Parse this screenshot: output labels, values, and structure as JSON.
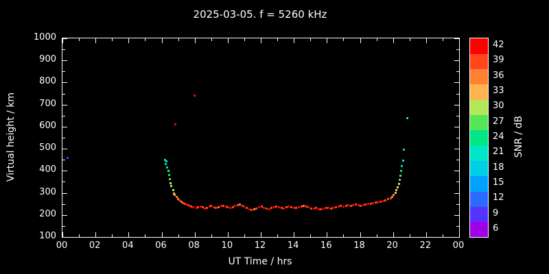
{
  "background": "#000000",
  "frame_color": "#ffffff",
  "text_color": "#ffffff",
  "chart_data": {
    "type": "scatter",
    "title": "2025-03-05. f = 5260 kHz",
    "xlabel": "UT Time / hrs",
    "ylabel": "Virtual height / km",
    "colorbar_label": "SNR / dB",
    "xlim": [
      0,
      24
    ],
    "ylim": [
      100,
      1000
    ],
    "grid": false,
    "legend_position": "none",
    "x_ticks": [
      {
        "value": 0,
        "label": "00"
      },
      {
        "value": 2,
        "label": "02"
      },
      {
        "value": 4,
        "label": "04"
      },
      {
        "value": 6,
        "label": "06"
      },
      {
        "value": 8,
        "label": "08"
      },
      {
        "value": 10,
        "label": "10"
      },
      {
        "value": 12,
        "label": "12"
      },
      {
        "value": 14,
        "label": "14"
      },
      {
        "value": 16,
        "label": "16"
      },
      {
        "value": 18,
        "label": "18"
      },
      {
        "value": 20,
        "label": "20"
      },
      {
        "value": 22,
        "label": "22"
      },
      {
        "value": 24,
        "label": "00"
      }
    ],
    "y_ticks": [
      100,
      200,
      300,
      400,
      500,
      600,
      700,
      800,
      900,
      1000
    ],
    "color_scale": [
      {
        "value": 6,
        "color": "#a000e6"
      },
      {
        "value": 9,
        "color": "#5533ff"
      },
      {
        "value": 12,
        "color": "#2b6bff"
      },
      {
        "value": 15,
        "color": "#00a2ff"
      },
      {
        "value": 18,
        "color": "#00cfe6"
      },
      {
        "value": 21,
        "color": "#00e6c8"
      },
      {
        "value": 24,
        "color": "#00e685"
      },
      {
        "value": 27,
        "color": "#55e655"
      },
      {
        "value": 30,
        "color": "#b4e65a"
      },
      {
        "value": 33,
        "color": "#ffb450"
      },
      {
        "value": 36,
        "color": "#ff8233"
      },
      {
        "value": 39,
        "color": "#ff4719"
      },
      {
        "value": 42,
        "color": "#ff0000"
      }
    ],
    "points": [
      [
        0.3,
        458,
        9
      ],
      [
        6.2,
        448,
        21
      ],
      [
        6.25,
        430,
        24
      ],
      [
        6.3,
        442,
        21
      ],
      [
        6.35,
        415,
        24
      ],
      [
        6.4,
        398,
        27
      ],
      [
        6.45,
        380,
        24
      ],
      [
        6.5,
        362,
        27
      ],
      [
        6.55,
        345,
        30
      ],
      [
        6.6,
        330,
        30
      ],
      [
        6.7,
        312,
        30
      ],
      [
        6.75,
        298,
        33
      ],
      [
        6.8,
        290,
        33
      ],
      [
        6.85,
        610,
        42
      ],
      [
        6.9,
        281,
        36
      ],
      [
        7.0,
        272,
        36
      ],
      [
        7.1,
        266,
        39
      ],
      [
        7.2,
        260,
        36
      ],
      [
        7.3,
        254,
        39
      ],
      [
        7.4,
        250,
        39
      ],
      [
        7.5,
        247,
        42
      ],
      [
        7.6,
        243,
        39
      ],
      [
        7.7,
        240,
        42
      ],
      [
        7.8,
        237,
        39
      ],
      [
        7.9,
        235,
        42
      ],
      [
        8.0,
        742,
        42
      ],
      [
        8.1,
        233,
        42
      ],
      [
        8.2,
        236,
        39
      ],
      [
        8.35,
        238,
        42
      ],
      [
        8.5,
        234,
        39
      ],
      [
        8.6,
        230,
        42
      ],
      [
        8.75,
        233,
        39
      ],
      [
        8.9,
        237,
        42
      ],
      [
        9.0,
        240,
        39
      ],
      [
        9.15,
        236,
        42
      ],
      [
        9.3,
        232,
        39
      ],
      [
        9.45,
        236,
        36
      ],
      [
        9.6,
        240,
        42
      ],
      [
        9.75,
        242,
        39
      ],
      [
        9.9,
        238,
        42
      ],
      [
        10.0,
        234,
        39
      ],
      [
        10.15,
        231,
        42
      ],
      [
        10.3,
        235,
        39
      ],
      [
        10.45,
        240,
        42
      ],
      [
        10.6,
        243,
        39
      ],
      [
        10.75,
        246,
        36
      ],
      [
        10.9,
        242,
        39
      ],
      [
        11.0,
        237,
        42
      ],
      [
        11.15,
        231,
        39
      ],
      [
        11.3,
        226,
        42
      ],
      [
        11.45,
        222,
        39
      ],
      [
        11.6,
        226,
        36
      ],
      [
        11.75,
        230,
        39
      ],
      [
        11.9,
        234,
        42
      ],
      [
        12.05,
        237,
        39
      ],
      [
        12.2,
        233,
        42
      ],
      [
        12.35,
        229,
        39
      ],
      [
        12.5,
        227,
        42
      ],
      [
        12.65,
        231,
        39
      ],
      [
        12.8,
        235,
        42
      ],
      [
        12.95,
        238,
        39
      ],
      [
        13.1,
        236,
        42
      ],
      [
        13.25,
        232,
        39
      ],
      [
        13.4,
        230,
        42
      ],
      [
        13.55,
        234,
        39
      ],
      [
        13.7,
        238,
        42
      ],
      [
        13.85,
        236,
        39
      ],
      [
        14.0,
        233,
        42
      ],
      [
        14.15,
        231,
        39
      ],
      [
        14.3,
        235,
        42
      ],
      [
        14.45,
        239,
        39
      ],
      [
        14.6,
        242,
        36
      ],
      [
        14.75,
        238,
        39
      ],
      [
        14.9,
        234,
        42
      ],
      [
        15.05,
        230,
        39
      ],
      [
        15.2,
        228,
        42
      ],
      [
        15.35,
        231,
        39
      ],
      [
        15.5,
        227,
        42
      ],
      [
        15.65,
        225,
        39
      ],
      [
        15.8,
        228,
        42
      ],
      [
        15.95,
        231,
        39
      ],
      [
        16.1,
        233,
        42
      ],
      [
        16.25,
        229,
        39
      ],
      [
        16.4,
        231,
        42
      ],
      [
        16.55,
        234,
        39
      ],
      [
        16.7,
        237,
        42
      ],
      [
        16.85,
        240,
        39
      ],
      [
        17.0,
        238,
        42
      ],
      [
        17.15,
        241,
        39
      ],
      [
        17.3,
        243,
        42
      ],
      [
        17.45,
        240,
        39
      ],
      [
        17.6,
        244,
        42
      ],
      [
        17.75,
        247,
        39
      ],
      [
        17.9,
        244,
        42
      ],
      [
        18.05,
        242,
        39
      ],
      [
        18.2,
        245,
        42
      ],
      [
        18.35,
        248,
        39
      ],
      [
        18.5,
        250,
        42
      ],
      [
        18.65,
        252,
        39
      ],
      [
        18.8,
        254,
        42
      ],
      [
        18.95,
        256,
        39
      ],
      [
        19.1,
        258,
        42
      ],
      [
        19.25,
        261,
        39
      ],
      [
        19.4,
        264,
        42
      ],
      [
        19.55,
        267,
        39
      ],
      [
        19.7,
        271,
        39
      ],
      [
        19.85,
        276,
        39
      ],
      [
        19.95,
        282,
        36
      ],
      [
        20.05,
        290,
        36
      ],
      [
        20.15,
        300,
        33
      ],
      [
        20.2,
        312,
        33
      ],
      [
        20.3,
        326,
        30
      ],
      [
        20.35,
        342,
        30
      ],
      [
        20.4,
        360,
        27
      ],
      [
        20.45,
        378,
        27
      ],
      [
        20.5,
        398,
        24
      ],
      [
        20.55,
        420,
        24
      ],
      [
        20.6,
        445,
        21
      ],
      [
        20.65,
        497,
        24
      ],
      [
        20.85,
        638,
        21
      ]
    ]
  }
}
